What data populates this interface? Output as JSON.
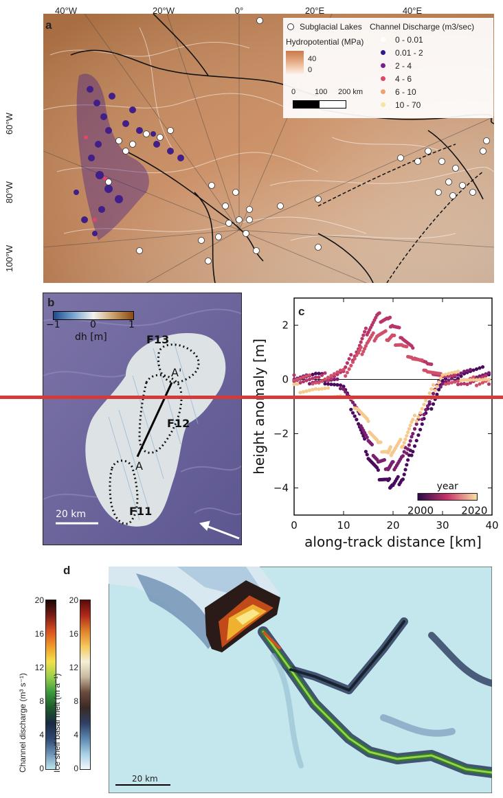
{
  "panel_a": {
    "label": "a",
    "top_ticks": [
      "40°W",
      "20°W",
      "0°",
      "20°E",
      "40°E"
    ],
    "left_ticks": [
      "60°W",
      "80°W",
      "100°W"
    ],
    "legend": {
      "lakes_label": "Subglacial Lakes",
      "discharge_title": "Channel Discharge (m3/sec)",
      "hydro_title": "Hydropotential (MPa)",
      "hydro_max": "40",
      "hydro_min": "0",
      "classes": [
        {
          "label": "0 - 0.01",
          "color": "#ffffff"
        },
        {
          "label": "0.01 - 2",
          "color": "#2a1a8c"
        },
        {
          "label": "2 - 4",
          "color": "#7a1f8e"
        },
        {
          "label": "4 - 6",
          "color": "#e0456a"
        },
        {
          "label": "6 - 10",
          "color": "#f3a06a"
        },
        {
          "label": "10 - 70",
          "color": "#f9e3a3"
        }
      ],
      "scale_labels": [
        "0",
        "100",
        "200 km"
      ]
    }
  },
  "panel_b": {
    "label": "b",
    "colorbar_ticks": [
      "−1",
      "0",
      "1"
    ],
    "colorbar_label": "dh [m]",
    "features": [
      "F13",
      "F12",
      "F11"
    ],
    "profile_start": "A",
    "profile_end": "A'",
    "scale_label": "20 km"
  },
  "panel_c": {
    "label": "c",
    "chart_data": {
      "type": "scatter",
      "xlabel": "along-track distance [km]",
      "ylabel": "height anomaly [m]",
      "xlim": [
        0,
        40
      ],
      "ylim": [
        -5,
        3
      ],
      "xticks": [
        "0",
        "10",
        "20",
        "30",
        "40"
      ],
      "yticks": [
        "2",
        "0",
        "−2",
        "−4"
      ],
      "legend_title": "year",
      "legend_ticks": [
        "2000",
        "2020"
      ],
      "series": [
        {
          "color": "#4a0b5e",
          "x": [
            0,
            5,
            10,
            13,
            15,
            17,
            19,
            20,
            22,
            24,
            27,
            30,
            35,
            40
          ],
          "y": [
            0.1,
            0.1,
            -0.3,
            -1.6,
            -2.8,
            -3.5,
            -3.8,
            -3.9,
            -3.6,
            -2.5,
            -1.2,
            -0.1,
            0.3,
            0.3
          ]
        },
        {
          "color": "#7a1f6e",
          "x": [
            0,
            5,
            10,
            13,
            15,
            17,
            19,
            20,
            22,
            24,
            27,
            30,
            35,
            40
          ],
          "y": [
            0.0,
            0.0,
            -0.2,
            -1.3,
            -2.3,
            -3.0,
            -3.2,
            -3.2,
            -2.9,
            -2.0,
            -0.9,
            0.0,
            0.2,
            0.2
          ]
        },
        {
          "color": "#b8356a",
          "x": [
            0,
            5,
            10,
            13,
            15,
            17,
            19,
            20,
            22,
            24,
            27,
            30,
            35,
            40
          ],
          "y": [
            0.0,
            0.0,
            0.3,
            1.2,
            1.9,
            2.3,
            2.2,
            2.0,
            1.6,
            1.0,
            0.5,
            0.1,
            -0.1,
            0.0
          ]
        },
        {
          "color": "#d0506a",
          "x": [
            0,
            5,
            10,
            13,
            15,
            17,
            19,
            20,
            22,
            24,
            27,
            30,
            35,
            40
          ],
          "y": [
            0.0,
            0.0,
            0.2,
            0.9,
            1.4,
            1.7,
            1.6,
            1.5,
            1.2,
            0.8,
            0.4,
            0.0,
            -0.1,
            0.0
          ]
        },
        {
          "color": "#f6c98e",
          "x": [
            0,
            5,
            10,
            13,
            15,
            17,
            19,
            20,
            22,
            24,
            27,
            30,
            35,
            40
          ],
          "y": [
            -0.3,
            -0.4,
            -0.6,
            -1.0,
            -1.7,
            -2.4,
            -2.7,
            -2.6,
            -2.3,
            -1.6,
            -0.7,
            0.2,
            0.1,
            -0.2
          ]
        }
      ]
    }
  },
  "panel_d": {
    "label": "d",
    "cbar1_label": "Channel discharge (m³ s⁻¹)",
    "cbar2_label": "Ice shelf basal melt (m a⁻¹)",
    "cbar1_ticks": [
      "20",
      "16",
      "12",
      "8",
      "4",
      "0"
    ],
    "cbar2_ticks": [
      "20",
      "16",
      "12",
      "8",
      "4",
      "0"
    ],
    "scale_label": "20 km"
  }
}
